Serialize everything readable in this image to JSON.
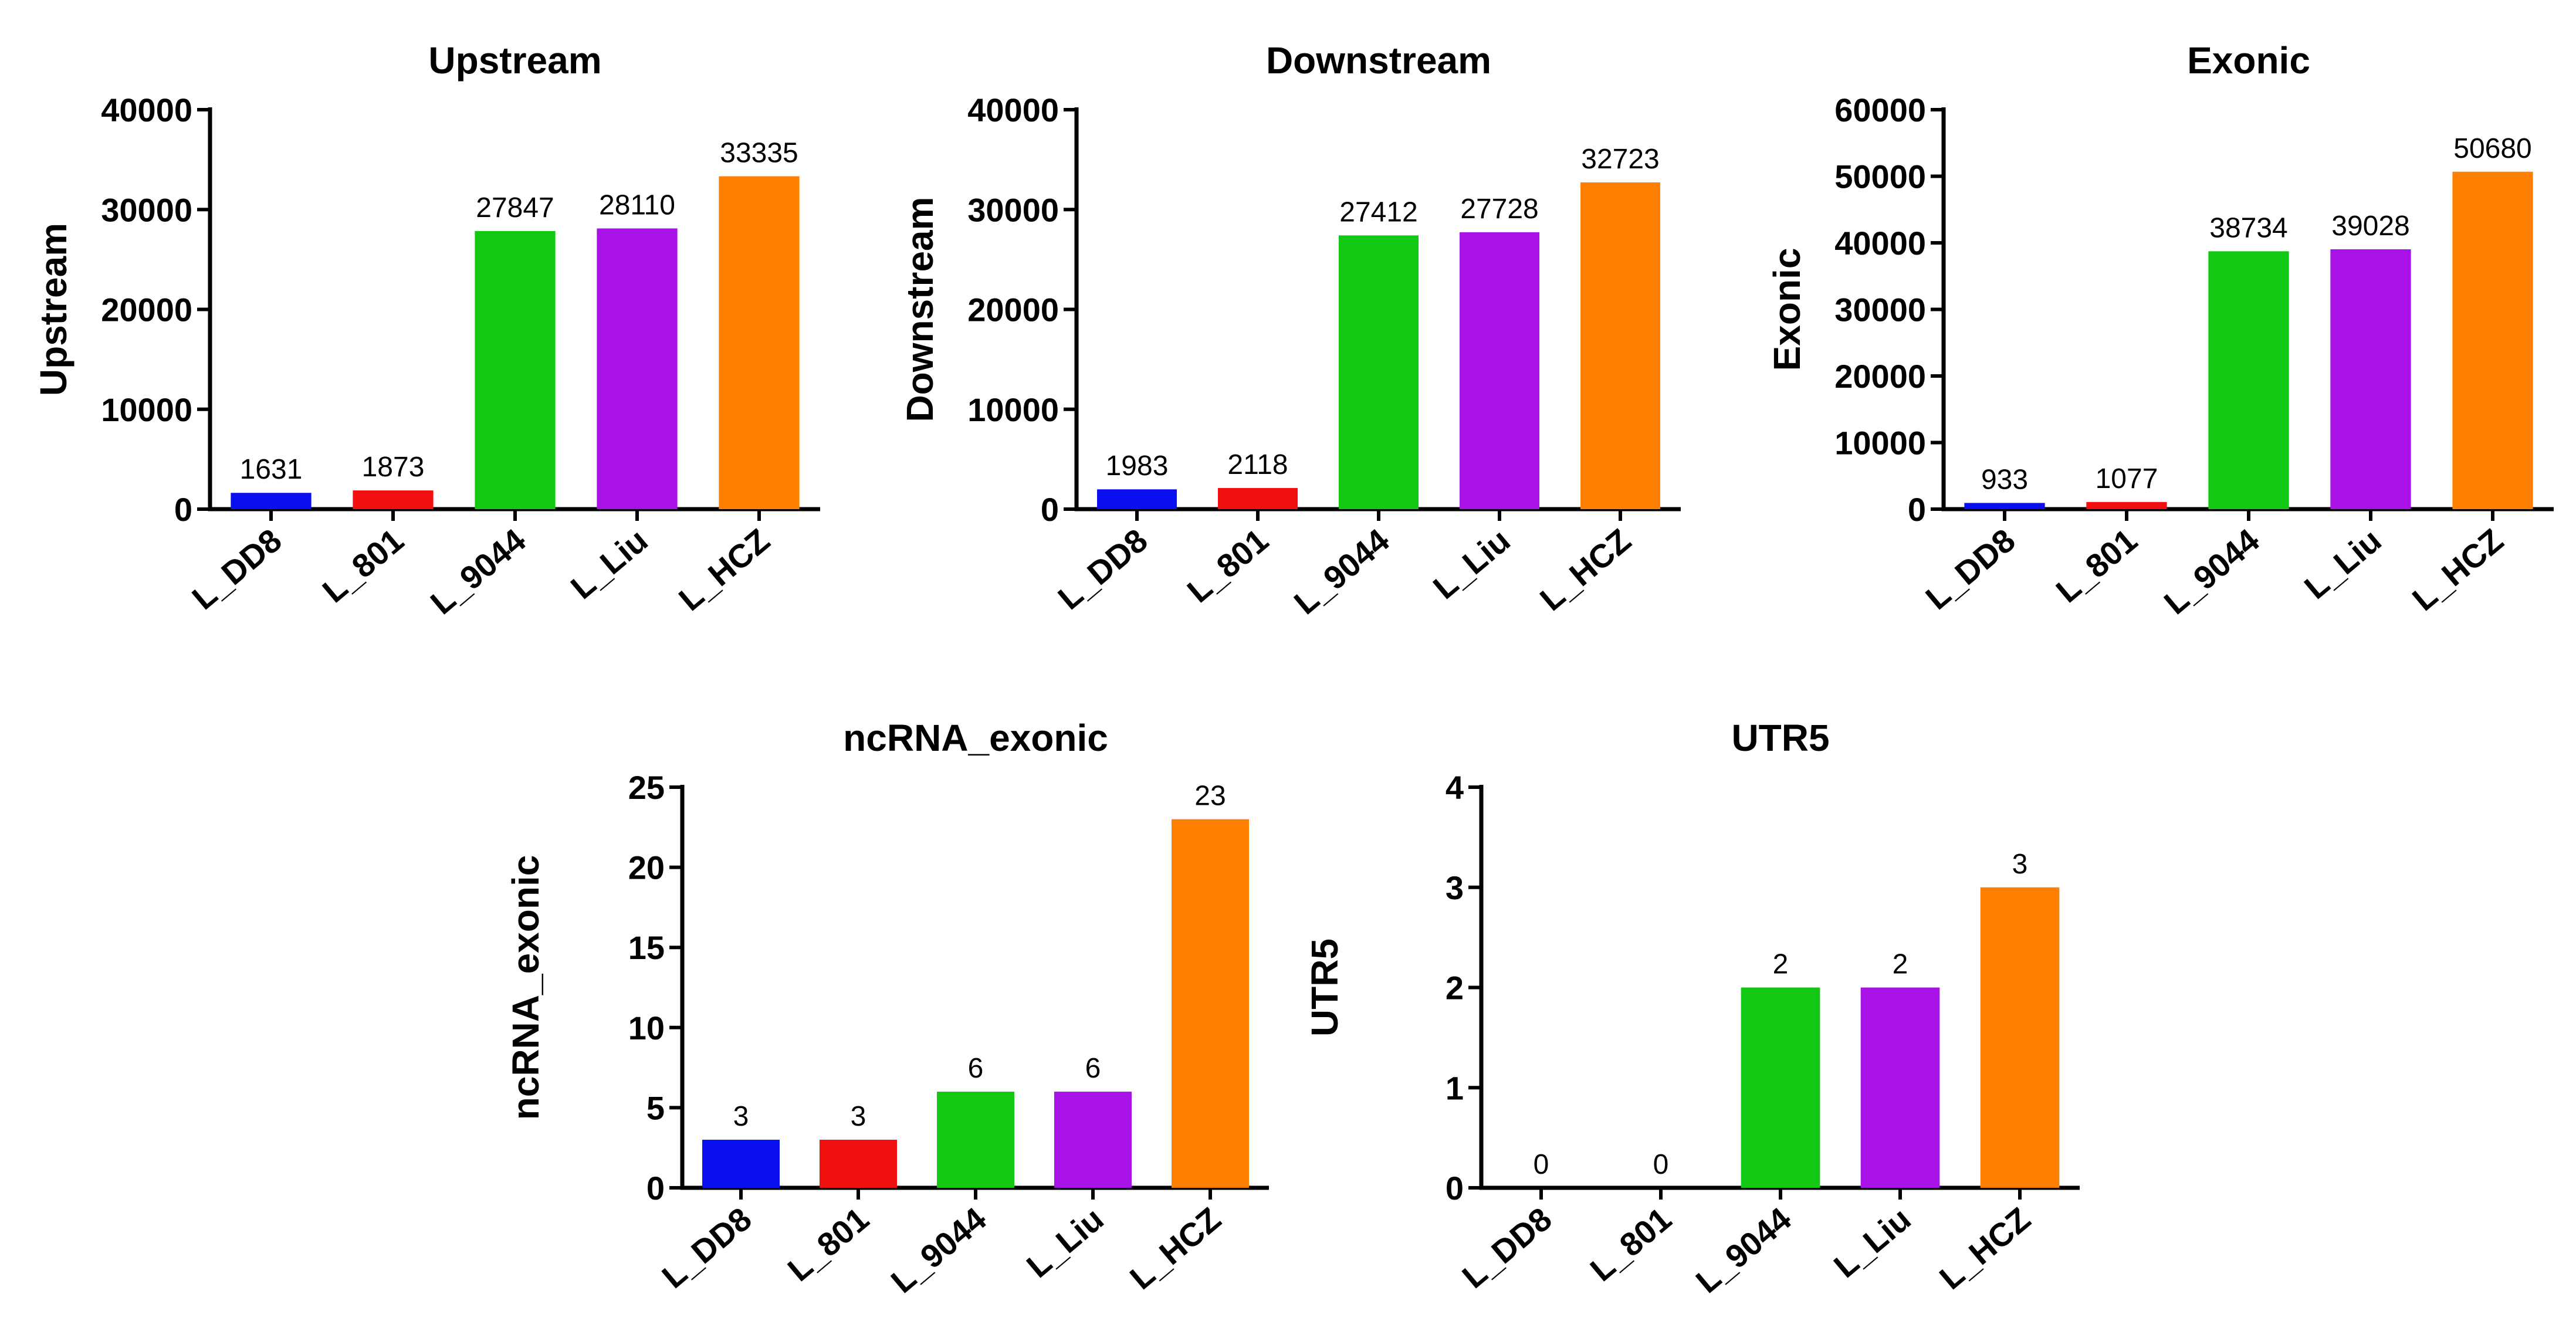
{
  "chart_data": [
    {
      "type": "bar",
      "title": "Upstream",
      "xlabel": "",
      "ylabel": "Upstream",
      "categories": [
        "L_DD8",
        "L_801",
        "L_9044",
        "L_Liu",
        "L_HCZ"
      ],
      "values": [
        1631,
        1873,
        27847,
        28110,
        33335
      ],
      "ylim": [
        0,
        40000
      ],
      "yticks": [
        "0",
        "10000",
        "20000",
        "30000",
        "40000"
      ],
      "colors": [
        "#0a0ff0",
        "#f01010",
        "#12c812",
        "#a912e6",
        "#ff8000"
      ]
    },
    {
      "type": "bar",
      "title": "Downstream",
      "xlabel": "",
      "ylabel": "Downstream",
      "categories": [
        "L_DD8",
        "L_801",
        "L_9044",
        "L_Liu",
        "L_HCZ"
      ],
      "values": [
        1983,
        2118,
        27412,
        27728,
        32723
      ],
      "ylim": [
        0,
        40000
      ],
      "yticks": [
        "0",
        "10000",
        "20000",
        "30000",
        "40000"
      ],
      "colors": [
        "#0a0ff0",
        "#f01010",
        "#12c812",
        "#a912e6",
        "#ff8000"
      ]
    },
    {
      "type": "bar",
      "title": "Exonic",
      "xlabel": "",
      "ylabel": "Exonic",
      "categories": [
        "L_DD8",
        "L_801",
        "L_9044",
        "L_Liu",
        "L_HCZ"
      ],
      "values": [
        933,
        1077,
        38734,
        39028,
        50680
      ],
      "ylim": [
        0,
        60000
      ],
      "yticks": [
        "0",
        "10000",
        "20000",
        "30000",
        "40000",
        "50000",
        "60000"
      ],
      "colors": [
        "#0a0ff0",
        "#f01010",
        "#12c812",
        "#a912e6",
        "#ff8000"
      ]
    },
    {
      "type": "bar",
      "title": "ncRNA_exonic",
      "xlabel": "",
      "ylabel": "ncRNA_exonic",
      "categories": [
        "L_DD8",
        "L_801",
        "L_9044",
        "L_Liu",
        "L_HCZ"
      ],
      "values": [
        3,
        3,
        6,
        6,
        23
      ],
      "ylim": [
        0,
        25
      ],
      "yticks": [
        "0",
        "5",
        "10",
        "15",
        "20",
        "25"
      ],
      "colors": [
        "#0a0ff0",
        "#f01010",
        "#12c812",
        "#a912e6",
        "#ff8000"
      ]
    },
    {
      "type": "bar",
      "title": "UTR5",
      "xlabel": "",
      "ylabel": "UTR5",
      "categories": [
        "L_DD8",
        "L_801",
        "L_9044",
        "L_Liu",
        "L_HCZ"
      ],
      "values": [
        0,
        0,
        2,
        2,
        3
      ],
      "ylim": [
        0,
        4
      ],
      "yticks": [
        "0",
        "1",
        "2",
        "3",
        "4"
      ],
      "colors": [
        "#0a0ff0",
        "#f01010",
        "#12c812",
        "#a912e6",
        "#ff8000"
      ]
    }
  ]
}
